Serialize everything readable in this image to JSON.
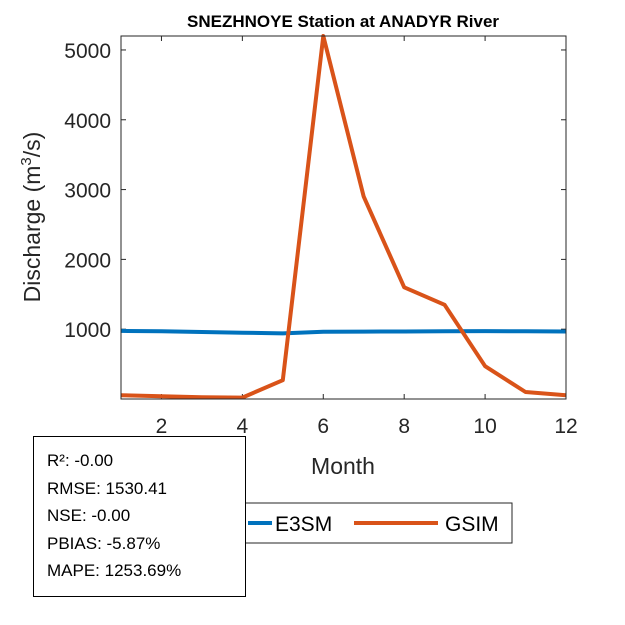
{
  "chart_data": {
    "type": "line",
    "title": "SNEZHNOYE  Station at  ANADYR  River",
    "xlabel": "Month",
    "ylabel_main": "Discharge (m",
    "ylabel_sup": "3",
    "ylabel_end": "/s)",
    "xlim": [
      1,
      12
    ],
    "ylim": [
      0,
      5200
    ],
    "xticks": [
      2,
      4,
      6,
      8,
      10,
      12
    ],
    "yticks": [
      1000,
      2000,
      3000,
      4000,
      5000
    ],
    "x": [
      1,
      2,
      3,
      4,
      5,
      6,
      7,
      8,
      9,
      10,
      11,
      12
    ],
    "series": [
      {
        "name": "E3SM",
        "color": "#0072BD",
        "values": [
          975,
          970,
          960,
          950,
          940,
          962,
          965,
          967,
          970,
          972,
          970,
          967
        ]
      },
      {
        "name": "GSIM",
        "color": "#D95319",
        "values": [
          55,
          40,
          25,
          20,
          270,
          5200,
          2900,
          1600,
          1350,
          470,
          100,
          55
        ]
      }
    ],
    "legend": {
      "position": "bottom-center",
      "entries": [
        "E3SM",
        "GSIM"
      ]
    }
  },
  "stats": [
    "R²: -0.00",
    "RMSE: 1530.41",
    "NSE: -0.00",
    "PBIAS: -5.87%",
    "MAPE: 1253.69%"
  ]
}
